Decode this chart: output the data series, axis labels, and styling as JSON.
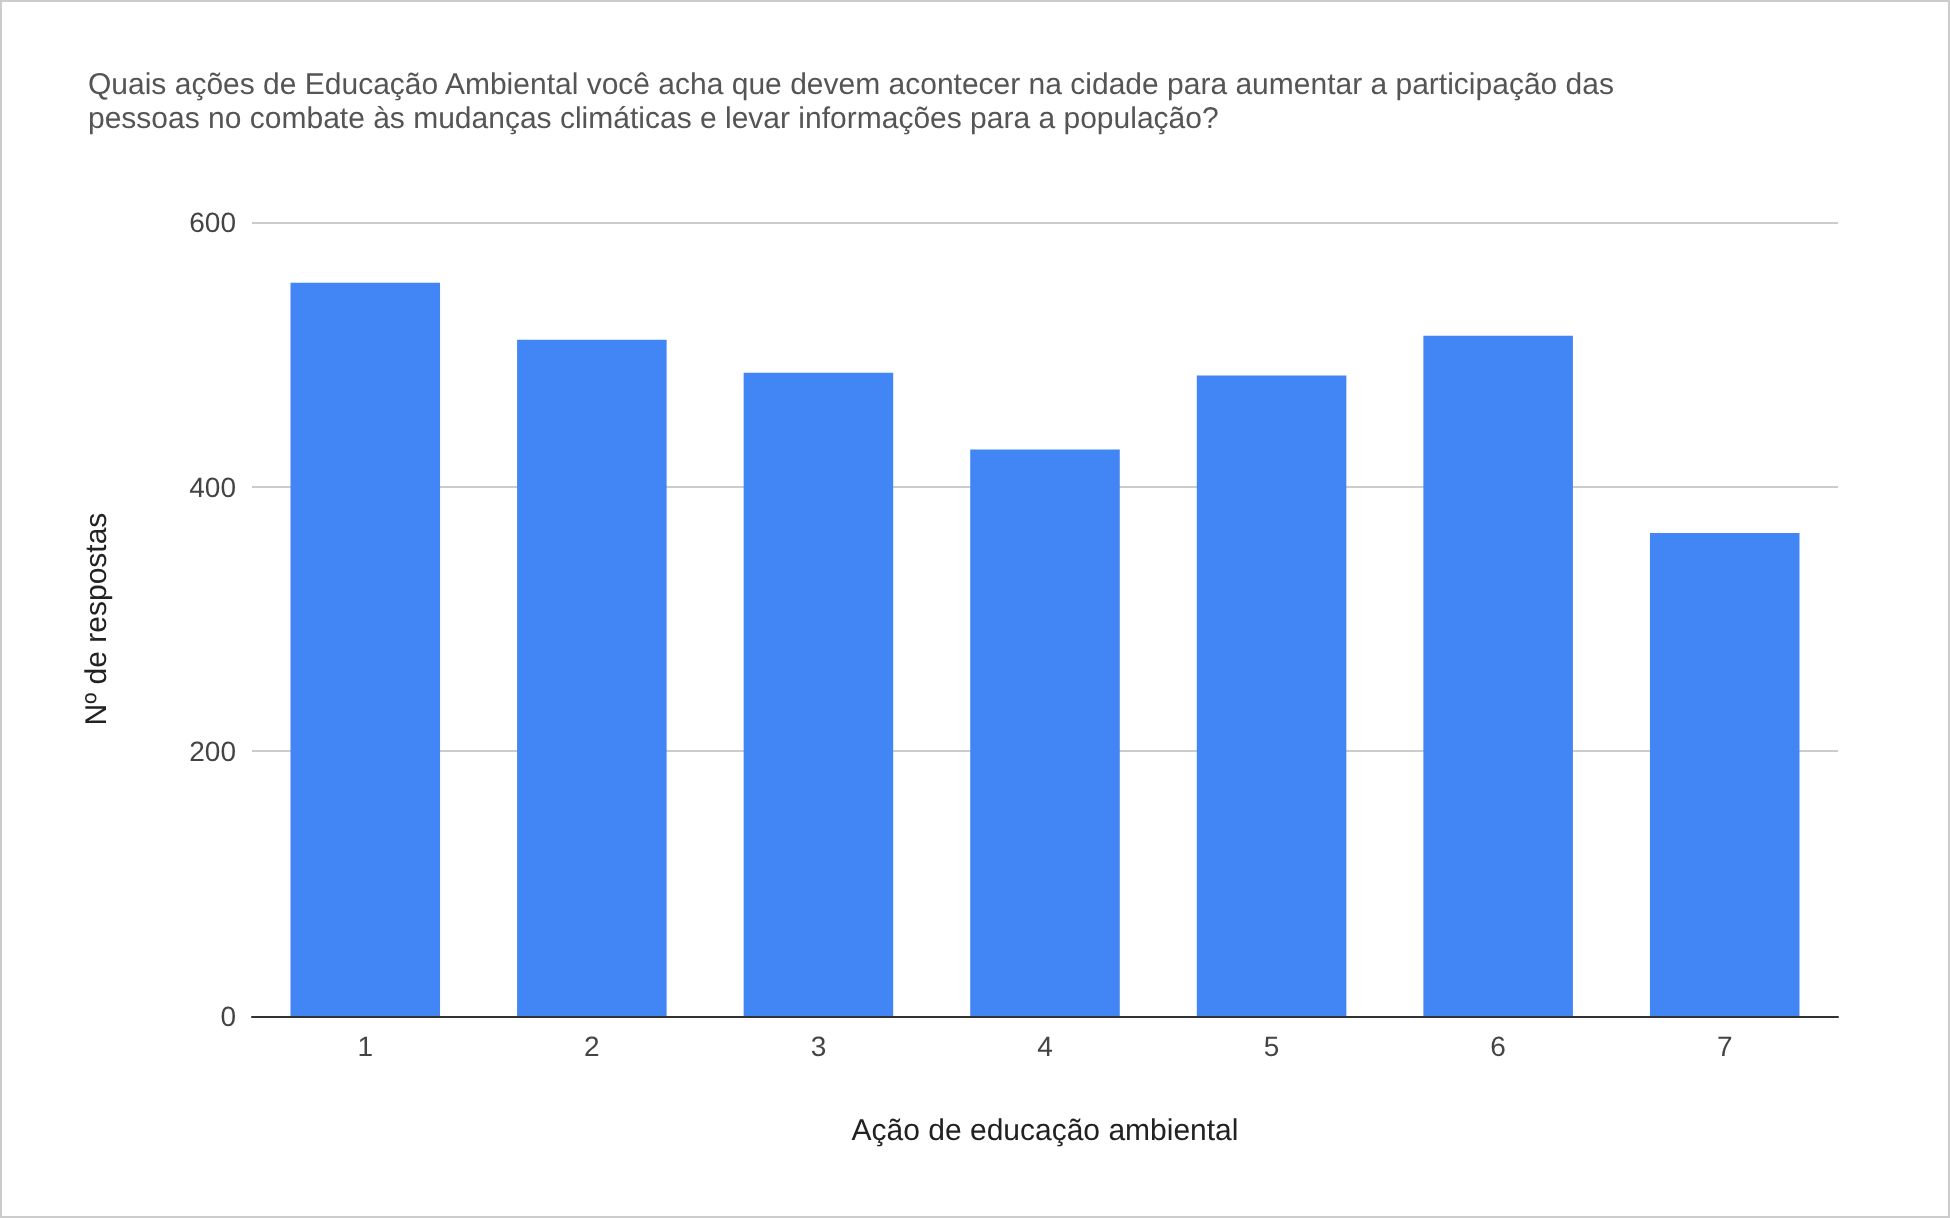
{
  "chart_data": {
    "type": "bar",
    "title": "Quais ações de Educação Ambiental você acha que devem acontecer na cidade para aumentar a participação das pessoas no combate às mudanças climáticas e levar informações para a população?",
    "xlabel": "Ação de educação ambiental",
    "ylabel": "Nº de respostas",
    "categories": [
      "1",
      "2",
      "3",
      "4",
      "5",
      "6",
      "7"
    ],
    "values": [
      554,
      511,
      486,
      428,
      484,
      514,
      365
    ],
    "color": "#4285f4",
    "ylim": [
      0,
      600
    ],
    "yticks": [
      0,
      200,
      400,
      600
    ],
    "grid": "y"
  }
}
